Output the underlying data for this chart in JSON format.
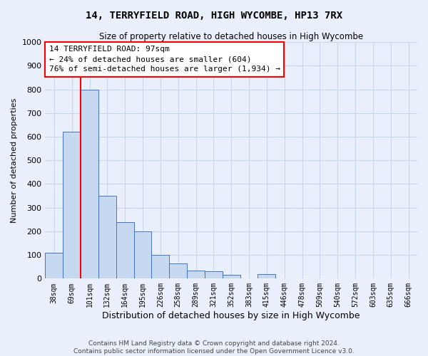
{
  "title": "14, TERRYFIELD ROAD, HIGH WYCOMBE, HP13 7RX",
  "subtitle": "Size of property relative to detached houses in High Wycombe",
  "xlabel": "Distribution of detached houses by size in High Wycombe",
  "ylabel": "Number of detached properties",
  "footer_line1": "Contains HM Land Registry data © Crown copyright and database right 2024.",
  "footer_line2": "Contains public sector information licensed under the Open Government Licence v3.0.",
  "bar_labels": [
    "38sqm",
    "69sqm",
    "101sqm",
    "132sqm",
    "164sqm",
    "195sqm",
    "226sqm",
    "258sqm",
    "289sqm",
    "321sqm",
    "352sqm",
    "383sqm",
    "415sqm",
    "446sqm",
    "478sqm",
    "509sqm",
    "540sqm",
    "572sqm",
    "603sqm",
    "635sqm",
    "666sqm"
  ],
  "bar_values": [
    110,
    620,
    800,
    350,
    240,
    200,
    100,
    65,
    35,
    30,
    15,
    0,
    20,
    0,
    0,
    0,
    0,
    0,
    0,
    0,
    0
  ],
  "bar_color": "#c6d9f1",
  "bar_edge_color": "#4472c4",
  "ylim": [
    0,
    1000
  ],
  "yticks": [
    0,
    100,
    200,
    300,
    400,
    500,
    600,
    700,
    800,
    900,
    1000
  ],
  "vline_x": 1.5,
  "vline_color": "red",
  "annotation_text": "14 TERRYFIELD ROAD: 97sqm\n← 24% of detached houses are smaller (604)\n76% of semi-detached houses are larger (1,934) →",
  "annotation_box_color": "white",
  "annotation_box_edge": "red",
  "bg_color": "#eaf0fb",
  "grid_color": "#c8d4ea",
  "title_fontsize": 10,
  "subtitle_fontsize": 9
}
